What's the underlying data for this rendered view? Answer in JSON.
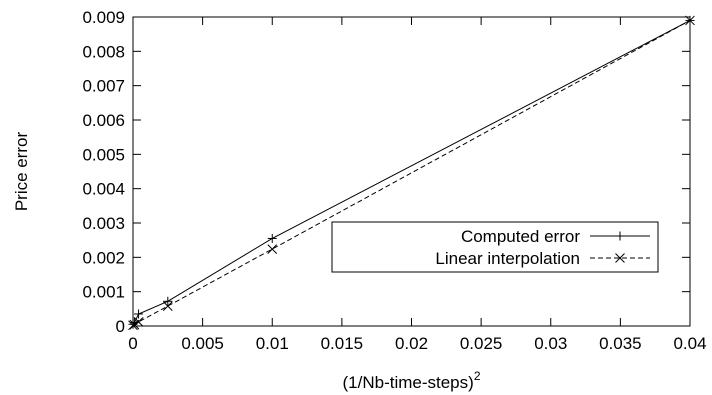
{
  "chart_data": {
    "type": "line",
    "title": "",
    "xlabel": "(1/Nb-time-steps)",
    "xlabel_superscript": "2",
    "ylabel": "Price error",
    "xlim": [
      0,
      0.04
    ],
    "ylim": [
      0,
      0.009
    ],
    "x_ticks": [
      "0",
      "0.005",
      "0.01",
      "0.015",
      "0.02",
      "0.025",
      "0.03",
      "0.035",
      "0.04"
    ],
    "y_ticks": [
      "0",
      "0.001",
      "0.002",
      "0.003",
      "0.004",
      "0.005",
      "0.006",
      "0.007",
      "0.008",
      "0.009"
    ],
    "grid": false,
    "legend_position": "center-right",
    "series": [
      {
        "name": "Computed error",
        "line_style": "solid",
        "marker": "plus",
        "color": "#000000",
        "points": [
          {
            "x": 0.0,
            "y": 5e-05
          },
          {
            "x": 0.0001,
            "y": 0.0001
          },
          {
            "x": 0.0004,
            "y": 0.00035
          },
          {
            "x": 0.0025,
            "y": 0.00072
          },
          {
            "x": 0.01,
            "y": 0.00255
          },
          {
            "x": 0.04,
            "y": 0.0089
          }
        ]
      },
      {
        "name": "Linear interpolation",
        "line_style": "dashed",
        "marker": "cross",
        "color": "#000000",
        "points": [
          {
            "x": 0.0,
            "y": 2e-05
          },
          {
            "x": 0.0001,
            "y": 4e-05
          },
          {
            "x": 0.0004,
            "y": 0.00012
          },
          {
            "x": 0.0025,
            "y": 0.00058
          },
          {
            "x": 0.01,
            "y": 0.00224
          },
          {
            "x": 0.04,
            "y": 0.0089
          }
        ]
      }
    ]
  }
}
